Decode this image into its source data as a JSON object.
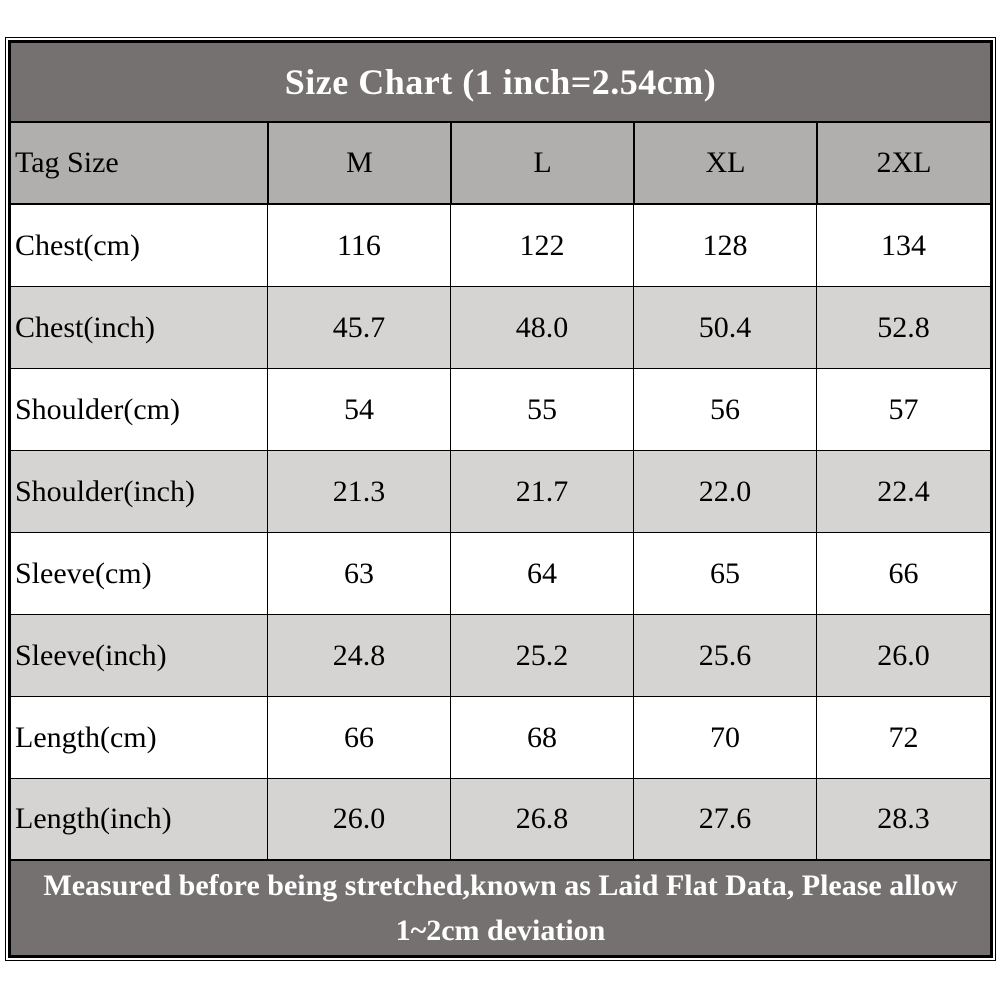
{
  "chart_data": {
    "type": "table",
    "title": "Size Chart (1 inch=2.54cm)",
    "columns": [
      "Tag Size",
      "M",
      "L",
      "XL",
      "2XL"
    ],
    "rows": [
      {
        "label": "Chest(cm)",
        "values": [
          "116",
          "122",
          "128",
          "134"
        ]
      },
      {
        "label": "Chest(inch)",
        "values": [
          "45.7",
          "48.0",
          "50.4",
          "52.8"
        ]
      },
      {
        "label": "Shoulder(cm)",
        "values": [
          "54",
          "55",
          "56",
          "57"
        ]
      },
      {
        "label": "Shoulder(inch)",
        "values": [
          "21.3",
          "21.7",
          "22.0",
          "22.4"
        ]
      },
      {
        "label": "Sleeve(cm)",
        "values": [
          "63",
          "64",
          "65",
          "66"
        ]
      },
      {
        "label": "Sleeve(inch)",
        "values": [
          "24.8",
          "25.2",
          "25.6",
          "26.0"
        ]
      },
      {
        "label": "Length(cm)",
        "values": [
          "66",
          "68",
          "70",
          "72"
        ]
      },
      {
        "label": "Length(inch)",
        "values": [
          "26.0",
          "26.8",
          "27.6",
          "28.3"
        ]
      }
    ],
    "footnote": "Measured before being stretched,known as Laid Flat Data, Please allow 1~2cm deviation"
  },
  "colors": {
    "bar_background": "#767171",
    "header_row_background": "#b1aeae",
    "zebra_row_background": "#d6d3d3",
    "row_background": "#ffffff",
    "border": "#000000",
    "bar_text": "#ffffff",
    "cell_text": "#000000"
  }
}
